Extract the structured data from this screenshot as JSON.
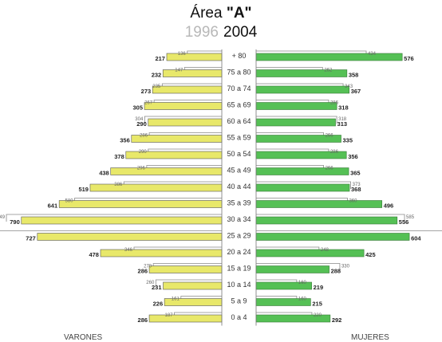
{
  "chart_data": {
    "type": "bar",
    "title_prefix": "Área",
    "title_main": "\"A\"",
    "years": [
      "1996",
      "2004"
    ],
    "left_label": "VARONES",
    "right_label": "MUJERES",
    "categories": [
      "+ 80",
      "75 a 80",
      "70 a 74",
      "65 a 69",
      "60 a 64",
      "55 a 59",
      "50 a 54",
      "45 a 49",
      "40 a 44",
      "35 a 39",
      "30 a 34",
      "25 a 29",
      "20 a 24",
      "15 a 19",
      "10 a 14",
      "5 a 9",
      "0 a 4"
    ],
    "series": [
      {
        "name": "VARONES",
        "year": "1996",
        "values": [
          136,
          147,
          235,
          267,
          304,
          286,
          290,
          296,
          386,
          580,
          849,
          896,
          346,
          270,
          260,
          161,
          187
        ]
      },
      {
        "name": "VARONES",
        "year": "2004",
        "values": [
          217,
          232,
          273,
          305,
          290,
          356,
          378,
          438,
          519,
          641,
          790,
          727,
          478,
          286,
          231,
          226,
          286
        ]
      },
      {
        "name": "MUJERES",
        "year": "1996",
        "values": [
          434,
          262,
          343,
          286,
          318,
          266,
          286,
          266,
          373,
          360,
          585,
          800,
          248,
          330,
          160,
          160,
          220
        ]
      },
      {
        "name": "MUJERES",
        "year": "2004",
        "values": [
          576,
          358,
          367,
          318,
          313,
          335,
          356,
          365,
          368,
          496,
          556,
          604,
          425,
          288,
          219,
          215,
          292
        ]
      }
    ],
    "colors": {
      "varones": "#e8e86a",
      "mujeres": "#55c055",
      "outline_1996": "#888888"
    }
  }
}
